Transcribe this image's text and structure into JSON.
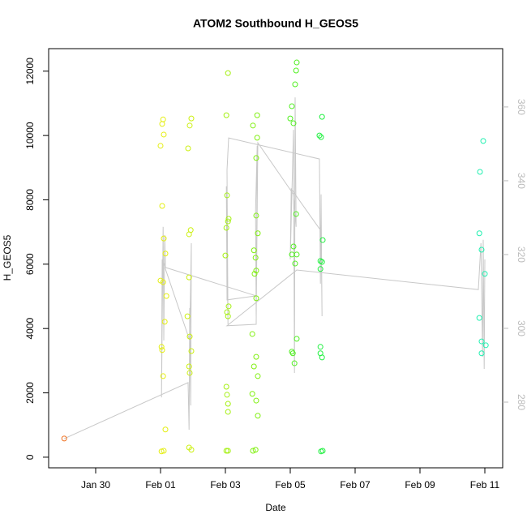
{
  "chart_data": {
    "type": "scatter",
    "title": "ATOM2 Southbound H_GEOS5",
    "x_label": "Date",
    "y_label": "H_GEOS5",
    "xlim": [
      28.55,
      42.55
    ],
    "xticks": [
      {
        "value": 30,
        "label": "Jan 30"
      },
      {
        "value": 32,
        "label": "Feb 01"
      },
      {
        "value": 34,
        "label": "Feb 03"
      },
      {
        "value": 36,
        "label": "Feb 05"
      },
      {
        "value": 38,
        "label": "Feb 07"
      },
      {
        "value": 40,
        "label": "Feb 09"
      },
      {
        "value": 42,
        "label": "Feb 11"
      }
    ],
    "ylim": [
      -330,
      12700
    ],
    "yticks": [
      0,
      2000,
      4000,
      6000,
      8000,
      10000,
      12000
    ],
    "y2lim": [
      262.2,
      375.8
    ],
    "y2ticks": [
      280,
      300,
      320,
      340,
      360
    ],
    "y2_color": "#bbbbbb",
    "series": [
      {
        "type": "line",
        "axis": "y2",
        "color": "#c8c8c8",
        "x": [
          29.03,
          32.85,
          32.88,
          32.9,
          32.93,
          32.95,
          32.9,
          32.05,
          32.03,
          32.08,
          32.1,
          32.13,
          32.15,
          34.95,
          34.05,
          34.03,
          34.08,
          34.05,
          34.1,
          36.9,
          36.93,
          36.95,
          36.98,
          36.95,
          36.9,
          36.03,
          36.0,
          36.1,
          36.13,
          36.15,
          36.18,
          36.1,
          35.0,
          34.95,
          34.93,
          34.98,
          34.95,
          34.05,
          36.2,
          41.8,
          41.88,
          41.93,
          41.95,
          41.98,
          42.0
        ],
        "values": [
          270.1,
          285.3,
          272.5,
          305.5,
          279.1,
          323.1,
          296.7,
          318.7,
          281.3,
          327.5,
          296.7,
          325.3,
          316.5,
          308.8,
          307.7,
          338.5,
          301.1,
          342.9,
          351.6,
          345.9,
          312.1,
          336.3,
          303.3,
          327.5,
          327.0,
          337.8,
          318.7,
          353.8,
          287.9,
          362.6,
          327.5,
          336.3,
          350.3,
          303.3,
          331.9,
          349.5,
          301.1,
          300.7,
          315.8,
          310.5,
          323.1,
          292.3,
          324.0,
          289.0,
          318.7
        ]
      },
      {
        "type": "scatter",
        "color": "#f07020",
        "x": [
          29.03
        ],
        "values": [
          580
        ]
      },
      {
        "type": "scatter",
        "color": "#e4ee10",
        "x": [
          32.08,
          32.05,
          32.1,
          32.0,
          32.05,
          32.1,
          32.15,
          32.0,
          32.08,
          32.18,
          32.13,
          32.03,
          32.05,
          32.08,
          32.15,
          32.1,
          32.03
        ],
        "values": [
          10500,
          10360,
          10030,
          9680,
          7810,
          6800,
          6330,
          5490,
          5440,
          5010,
          4210,
          3430,
          3330,
          2520,
          860,
          200,
          180
        ]
      },
      {
        "type": "scatter",
        "color": "#ccf010",
        "x": [
          32.95,
          32.9,
          32.85,
          32.93,
          32.88,
          32.88,
          32.83,
          32.9,
          32.95,
          32.88,
          32.9,
          32.88,
          32.95
        ],
        "values": [
          10530,
          10310,
          9600,
          7060,
          6930,
          5590,
          4380,
          3750,
          3300,
          2820,
          2620,
          300,
          230
        ]
      },
      {
        "type": "scatter",
        "color": "#a4f010",
        "x": [
          34.08,
          34.03,
          34.05,
          34.1,
          34.08,
          34.03,
          34.0,
          34.1,
          34.05,
          34.08,
          34.03,
          34.05,
          34.08,
          34.08,
          34.08,
          34.03
        ],
        "values": [
          11940,
          10630,
          8140,
          7410,
          7330,
          7130,
          6270,
          4690,
          4510,
          4380,
          2190,
          1940,
          1660,
          1410,
          200,
          200
        ]
      },
      {
        "type": "scatter",
        "color": "#80f010",
        "x": [
          34.98,
          34.85,
          34.98,
          34.95,
          34.95,
          35.0,
          34.88,
          34.93,
          34.95,
          34.9,
          34.95,
          34.83,
          34.95,
          34.88,
          35.0,
          34.83,
          34.95,
          35.0,
          34.93,
          34.85
        ],
        "values": [
          10630,
          10310,
          9930,
          9300,
          7510,
          6960,
          6430,
          6200,
          5800,
          5700,
          4940,
          3830,
          3120,
          2820,
          2520,
          1970,
          1760,
          1290,
          230,
          200
        ]
      },
      {
        "type": "scatter",
        "color": "#50f020",
        "x": [
          36.2,
          36.18,
          36.15,
          36.05,
          36.0,
          36.1,
          36.18,
          36.1,
          36.05,
          36.2,
          36.15,
          36.2,
          36.05,
          36.08,
          36.13
        ],
        "values": [
          12270,
          12020,
          11590,
          10910,
          10530,
          10380,
          7560,
          6550,
          6300,
          6300,
          6020,
          3680,
          3280,
          3230,
          2920
        ]
      },
      {
        "type": "scatter",
        "color": "#20f040",
        "x": [
          36.98,
          36.9,
          36.95,
          37.0,
          36.93,
          36.98,
          36.93,
          36.93,
          36.93,
          36.98,
          37.0,
          36.95
        ],
        "values": [
          10580,
          10000,
          9950,
          6750,
          6100,
          6070,
          5850,
          3430,
          3230,
          3100,
          200,
          180
        ]
      },
      {
        "type": "scatter",
        "color": "#20f0b0",
        "x": [
          41.95,
          41.85,
          41.83,
          41.9,
          42.0,
          41.83,
          41.9,
          42.03,
          41.9
        ],
        "values": [
          9830,
          8870,
          6960,
          6450,
          5700,
          4330,
          3600,
          3480,
          3230
        ]
      }
    ]
  }
}
